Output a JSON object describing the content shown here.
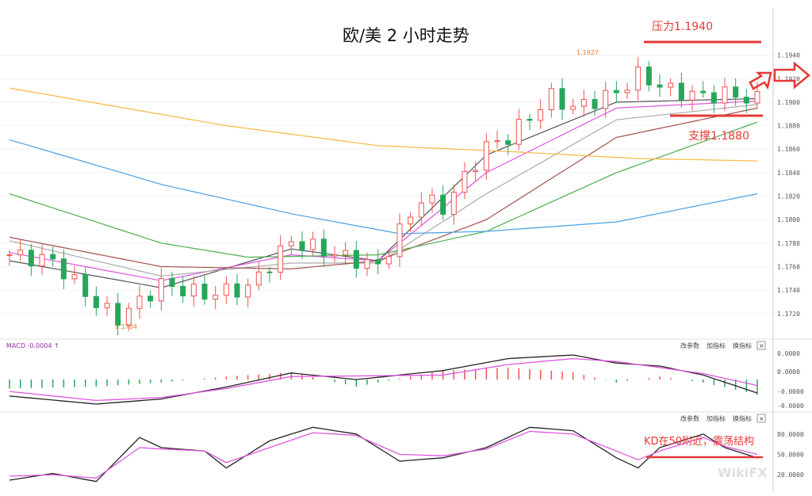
{
  "title": "欧/美  2 小时走势",
  "annotations": {
    "resistance": "压力1.1940",
    "support": "支撑1.1880",
    "high_label": "1.1927",
    "low_label": "1.1704",
    "kd_note": "KD在50附近，震荡结构"
  },
  "macd_label": "MACD -0.0004 ↑",
  "panel_buttons": [
    "改参数",
    "加指标",
    "换指标"
  ],
  "close_glyph": "×",
  "watermark": "WikiFX",
  "colors": {
    "up": "#ef5350",
    "down": "#26a65b",
    "ma5": "#555555",
    "ma10": "#e056e0",
    "ma20": "#aaaaaa",
    "ma30": "#a0524a",
    "ma60": "#4caf50",
    "ma120": "#4a9fe0",
    "ma240": "#f5b942",
    "dif": "#222222",
    "dea": "#e056e0",
    "k": "#222222",
    "d": "#e056e0",
    "annotation": "#e53935"
  },
  "chart_data": [
    {
      "type": "candlestick",
      "title": "欧/美  2 小时走势",
      "y_ticks": [
        "1.1940",
        "1.1920",
        "1.1900",
        "1.1880",
        "1.1860",
        "1.1840",
        "1.1820",
        "1.1800",
        "1.1780",
        "1.1760",
        "1.1740",
        "1.1720"
      ],
      "ylim": [
        1.1705,
        1.196
      ],
      "candles": 70,
      "price_path": [
        [
          0,
          1.177
        ],
        [
          4,
          1.1765
        ],
        [
          8,
          1.1728
        ],
        [
          10,
          1.1716
        ],
        [
          14,
          1.1745
        ],
        [
          18,
          1.1736
        ],
        [
          22,
          1.1742
        ],
        [
          26,
          1.1782
        ],
        [
          31,
          1.1768
        ],
        [
          34,
          1.176
        ],
        [
          36,
          1.179
        ],
        [
          38,
          1.1818
        ],
        [
          40,
          1.181
        ],
        [
          44,
          1.1862
        ],
        [
          46,
          1.187
        ],
        [
          50,
          1.1905
        ],
        [
          52,
          1.1895
        ],
        [
          56,
          1.1908
        ],
        [
          58,
          1.1923
        ],
        [
          61,
          1.191
        ],
        [
          64,
          1.1905
        ],
        [
          66,
          1.1907
        ],
        [
          69,
          1.1902
        ]
      ],
      "high": 1.1927,
      "low": 1.1704,
      "resistance": 1.194,
      "support": 1.188,
      "moving_averages": [
        {
          "points": [
            [
              0,
              1.1765
            ],
            [
              14,
              1.1742
            ],
            [
              26,
              1.1775
            ],
            [
              34,
              1.1765
            ],
            [
              44,
              1.1855
            ],
            [
              56,
              1.19
            ],
            [
              69,
              1.1903
            ]
          ]
        },
        {
          "points": [
            [
              0,
              1.1772
            ],
            [
              14,
              1.1748
            ],
            [
              26,
              1.177
            ],
            [
              34,
              1.1765
            ],
            [
              44,
              1.184
            ],
            [
              56,
              1.1895
            ],
            [
              69,
              1.1901
            ]
          ]
        },
        {
          "points": [
            [
              0,
              1.1782
            ],
            [
              14,
              1.1752
            ],
            [
              26,
              1.1763
            ],
            [
              34,
              1.1763
            ],
            [
              44,
              1.1822
            ],
            [
              56,
              1.1885
            ],
            [
              69,
              1.1898
            ]
          ]
        },
        {
          "points": [
            [
              0,
              1.1785
            ],
            [
              14,
              1.176
            ],
            [
              26,
              1.1758
            ],
            [
              34,
              1.1765
            ],
            [
              44,
              1.18
            ],
            [
              56,
              1.187
            ],
            [
              69,
              1.1895
            ]
          ]
        },
        {
          "points": [
            [
              0,
              1.1822
            ],
            [
              14,
              1.178
            ],
            [
              22,
              1.1768
            ],
            [
              34,
              1.177
            ],
            [
              44,
              1.179
            ],
            [
              56,
              1.184
            ],
            [
              69,
              1.1883
            ]
          ]
        },
        {
          "points": [
            [
              0,
              1.1868
            ],
            [
              14,
              1.183
            ],
            [
              26,
              1.1805
            ],
            [
              36,
              1.1788
            ],
            [
              44,
              1.179
            ],
            [
              56,
              1.1798
            ],
            [
              69,
              1.1822
            ]
          ]
        },
        {
          "points": [
            [
              0,
              1.1912
            ],
            [
              20,
              1.188
            ],
            [
              34,
              1.1863
            ],
            [
              46,
              1.1858
            ],
            [
              58,
              1.1852
            ],
            [
              69,
              1.185
            ]
          ]
        }
      ]
    },
    {
      "type": "bar",
      "indicator": "MACD",
      "y_ticks": [
        "0.0000",
        "0.0000",
        "-0.0000",
        "-0.0000"
      ],
      "dif": [
        [
          0,
          -0.00055
        ],
        [
          8,
          -0.00082
        ],
        [
          14,
          -0.00065
        ],
        [
          20,
          -0.00025
        ],
        [
          26,
          0.00022
        ],
        [
          32,
          0.0
        ],
        [
          40,
          0.0003
        ],
        [
          46,
          0.0007
        ],
        [
          52,
          0.00082
        ],
        [
          56,
          0.00055
        ],
        [
          60,
          0.00045
        ],
        [
          64,
          0.00015
        ],
        [
          69,
          -0.00045
        ]
      ],
      "dea": [
        [
          0,
          -0.0004
        ],
        [
          8,
          -0.0007
        ],
        [
          14,
          -0.0006
        ],
        [
          20,
          -0.0003
        ],
        [
          26,
          0.0001
        ],
        [
          32,
          0.00012
        ],
        [
          40,
          0.00015
        ],
        [
          46,
          0.0005
        ],
        [
          52,
          0.0007
        ],
        [
          56,
          0.0006
        ],
        [
          60,
          0.0004
        ],
        [
          64,
          0.0002
        ],
        [
          69,
          -0.0002
        ]
      ]
    },
    {
      "type": "line",
      "indicator": "KD",
      "y_ticks": [
        "80.0000",
        "50.0000",
        "20.0000"
      ],
      "ylim": [
        5,
        95
      ],
      "k": [
        [
          0,
          12
        ],
        [
          4,
          22
        ],
        [
          8,
          10
        ],
        [
          12,
          75
        ],
        [
          14,
          60
        ],
        [
          18,
          55
        ],
        [
          20,
          30
        ],
        [
          24,
          70
        ],
        [
          28,
          90
        ],
        [
          32,
          80
        ],
        [
          36,
          40
        ],
        [
          40,
          45
        ],
        [
          44,
          60
        ],
        [
          48,
          90
        ],
        [
          52,
          85
        ],
        [
          56,
          45
        ],
        [
          58,
          30
        ],
        [
          60,
          60
        ],
        [
          64,
          80
        ],
        [
          66,
          60
        ],
        [
          69,
          45
        ]
      ],
      "d": [
        [
          0,
          18
        ],
        [
          4,
          20
        ],
        [
          8,
          15
        ],
        [
          12,
          60
        ],
        [
          14,
          58
        ],
        [
          18,
          55
        ],
        [
          20,
          38
        ],
        [
          24,
          60
        ],
        [
          28,
          82
        ],
        [
          32,
          78
        ],
        [
          36,
          50
        ],
        [
          40,
          48
        ],
        [
          44,
          58
        ],
        [
          48,
          84
        ],
        [
          52,
          80
        ],
        [
          56,
          55
        ],
        [
          58,
          42
        ],
        [
          60,
          55
        ],
        [
          64,
          75
        ],
        [
          66,
          62
        ],
        [
          69,
          50
        ]
      ],
      "reference": 50
    }
  ]
}
